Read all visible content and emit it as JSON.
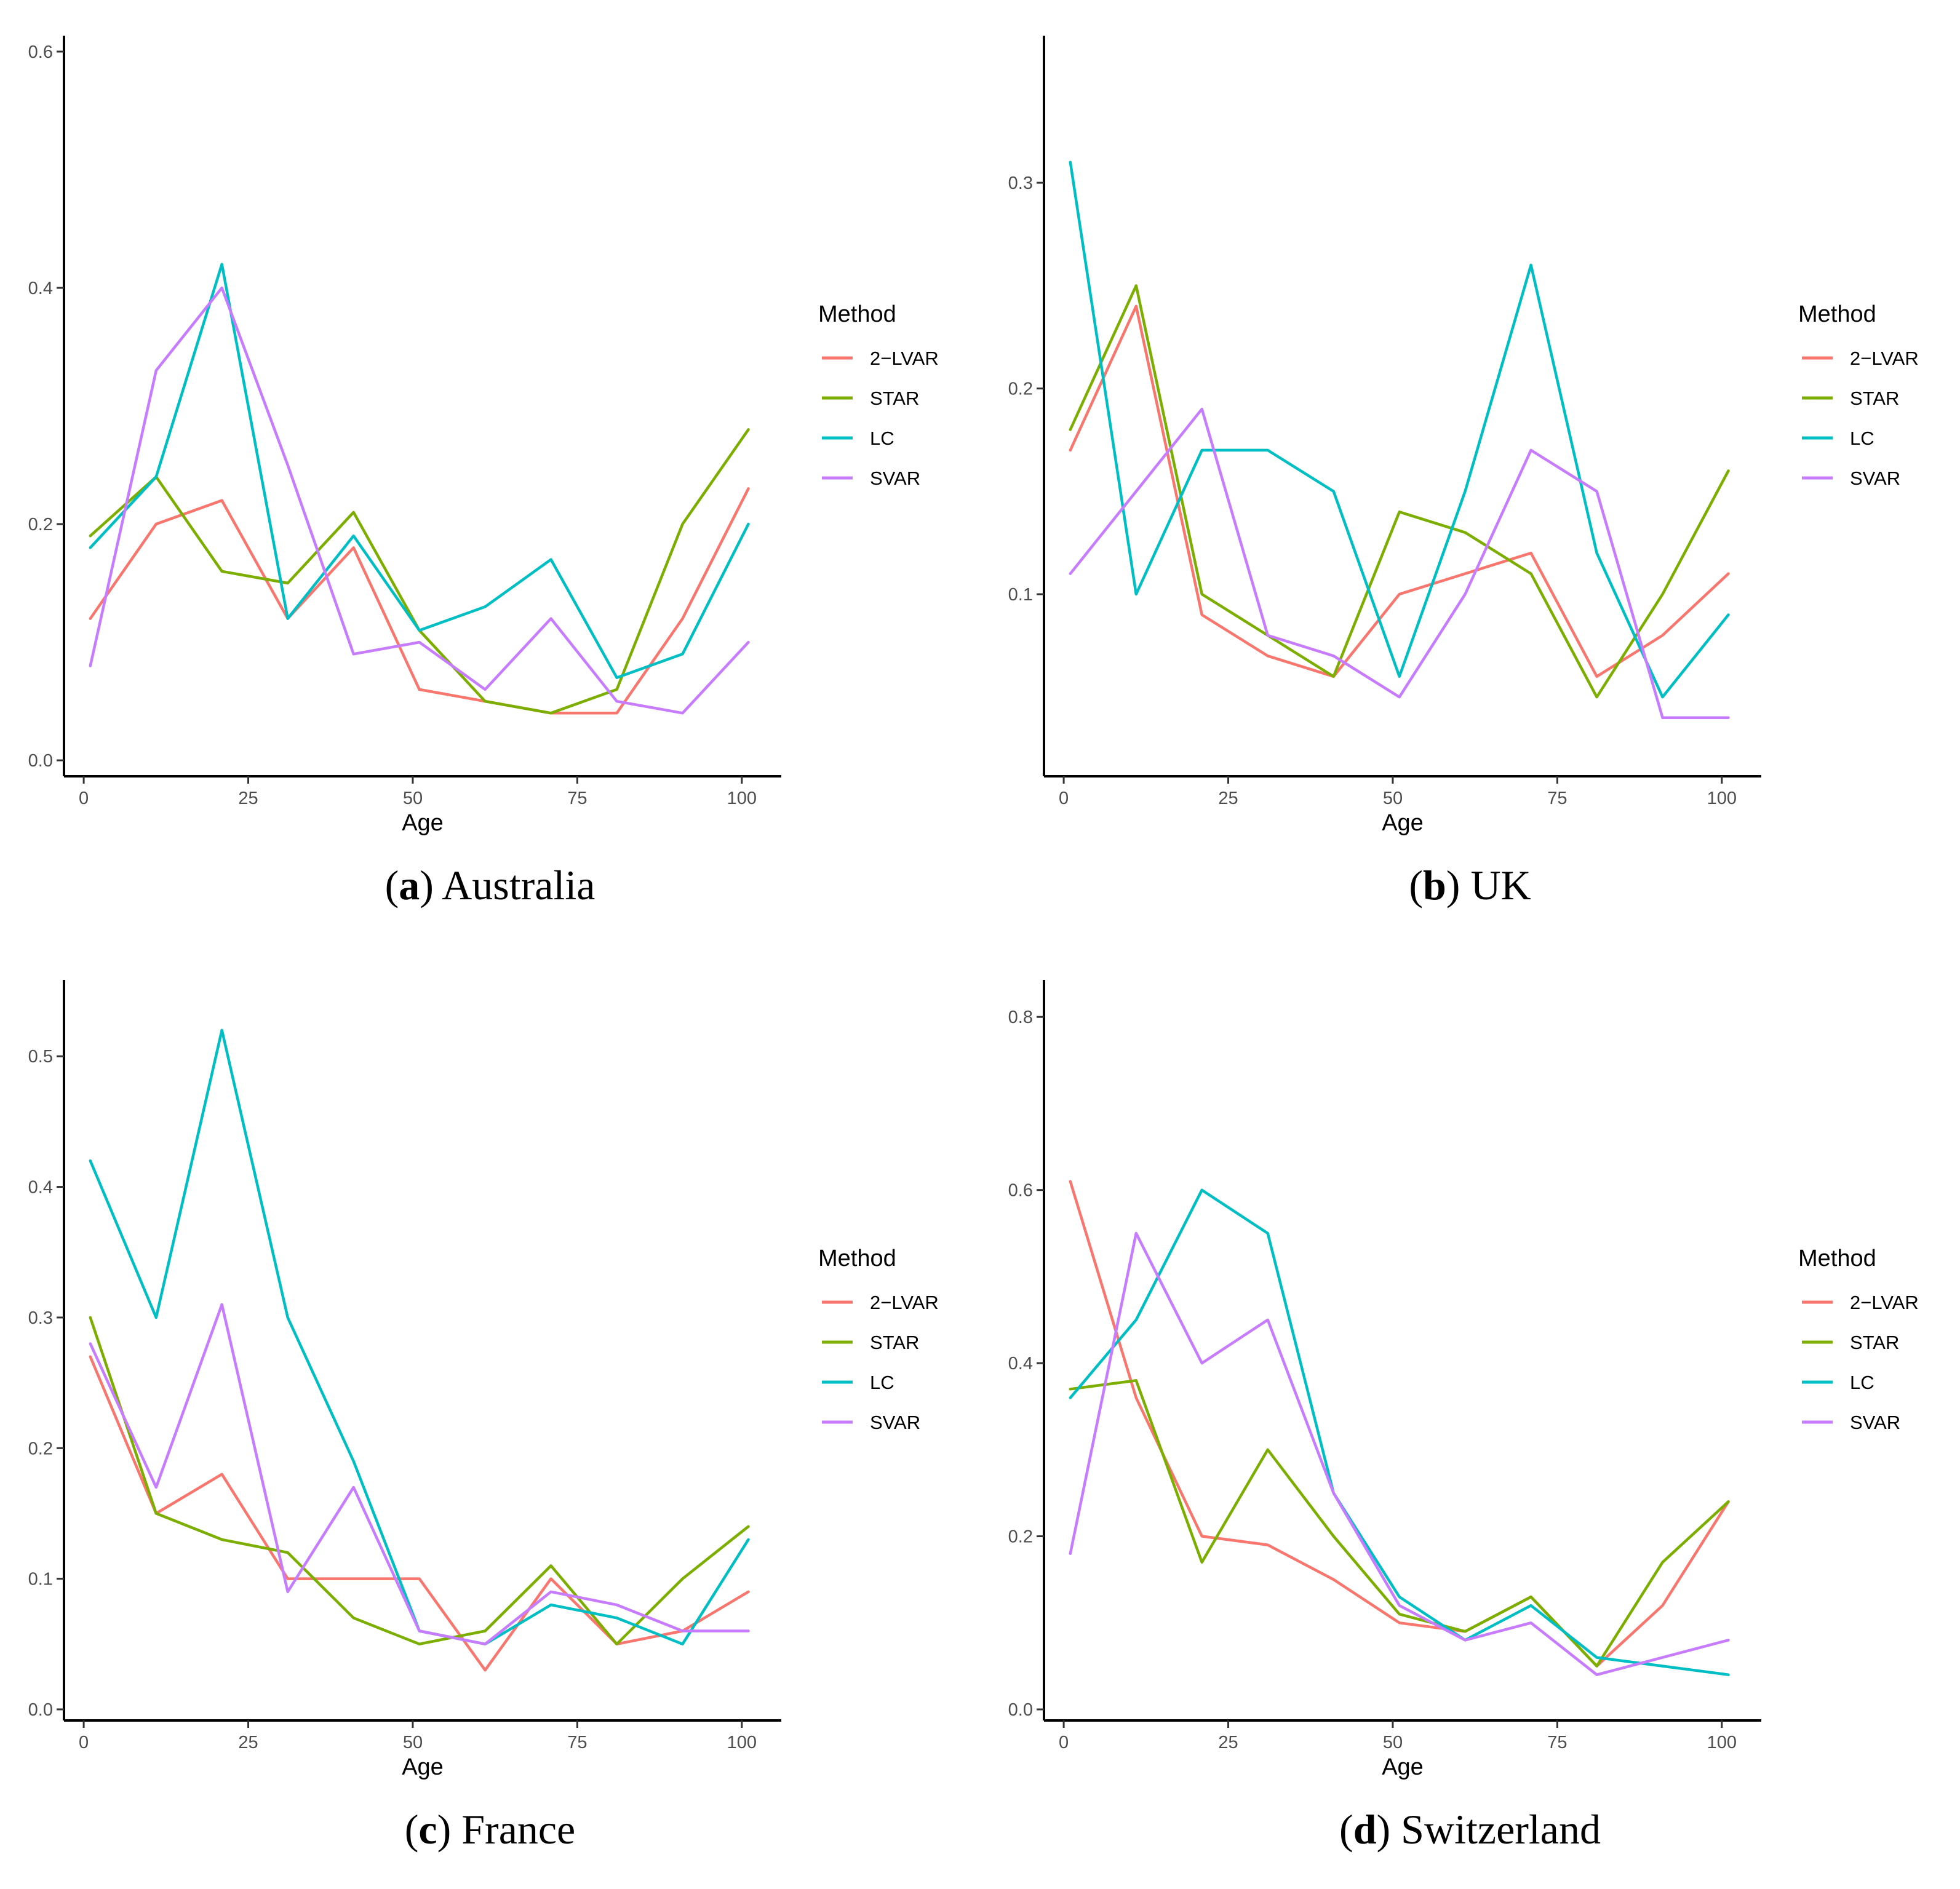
{
  "legend": {
    "title": "Method",
    "entries": [
      "2−LVAR",
      "STAR",
      "LC",
      "SVAR"
    ],
    "colors": [
      "#F8766D",
      "#7CAE00",
      "#00BFC4",
      "#C77CFF"
    ]
  },
  "chart_data": [
    {
      "type": "line",
      "caption_letter": "a",
      "caption_name": "Australia",
      "xlabel": "Age",
      "ylabel": "",
      "xlim": [
        -3,
        106
      ],
      "ylim": [
        -0.0135,
        0.6135
      ],
      "xticks": [
        "0",
        "25",
        "50",
        "75",
        "100"
      ],
      "yticks": [
        "0.0",
        "0.2",
        "0.4",
        "0.6"
      ],
      "x": [
        1,
        11,
        21,
        31,
        41,
        51,
        61,
        71,
        81,
        91,
        101
      ],
      "series": [
        {
          "name": "2−LVAR",
          "values": [
            0.12,
            0.2,
            0.22,
            0.12,
            0.18,
            0.06,
            0.05,
            0.04,
            0.04,
            0.12,
            0.23
          ]
        },
        {
          "name": "STAR",
          "values": [
            0.19,
            0.24,
            0.16,
            0.15,
            0.21,
            0.11,
            0.05,
            0.04,
            0.06,
            0.2,
            0.28
          ]
        },
        {
          "name": "LC",
          "values": [
            0.18,
            0.24,
            0.42,
            0.12,
            0.19,
            0.11,
            0.13,
            0.17,
            0.07,
            0.09,
            0.2
          ]
        },
        {
          "name": "SVAR",
          "values": [
            0.08,
            0.33,
            0.4,
            0.25,
            0.09,
            0.1,
            0.06,
            0.12,
            0.05,
            0.04,
            0.1
          ]
        }
      ]
    },
    {
      "type": "line",
      "caption_letter": "b",
      "caption_name": "UK",
      "xlabel": "Age",
      "ylabel": "",
      "xlim": [
        -3,
        106
      ],
      "ylim": [
        0.0115,
        0.3715
      ],
      "xticks": [
        "0",
        "25",
        "50",
        "75",
        "100"
      ],
      "yticks": [
        "0.1",
        "0.2",
        "0.3"
      ],
      "x": [
        1,
        11,
        21,
        31,
        41,
        51,
        61,
        71,
        81,
        91,
        101
      ],
      "series": [
        {
          "name": "2−LVAR",
          "values": [
            0.17,
            0.24,
            0.09,
            0.07,
            0.06,
            0.1,
            0.11,
            0.12,
            0.06,
            0.08,
            0.11
          ]
        },
        {
          "name": "STAR",
          "values": [
            0.18,
            0.25,
            0.1,
            0.08,
            0.06,
            0.14,
            0.13,
            0.11,
            0.05,
            0.1,
            0.16
          ]
        },
        {
          "name": "LC",
          "values": [
            0.31,
            0.1,
            0.17,
            0.17,
            0.15,
            0.06,
            0.15,
            0.26,
            0.12,
            0.05,
            0.09
          ]
        },
        {
          "name": "SVAR",
          "values": [
            0.11,
            0.15,
            0.19,
            0.08,
            0.07,
            0.05,
            0.1,
            0.17,
            0.15,
            0.04,
            0.04
          ]
        }
      ]
    },
    {
      "type": "line",
      "caption_letter": "c",
      "caption_name": "France",
      "xlabel": "Age",
      "ylabel": "",
      "xlim": [
        -3,
        106
      ],
      "ylim": [
        -0.0085,
        0.5585
      ],
      "xticks": [
        "0",
        "25",
        "50",
        "75",
        "100"
      ],
      "yticks": [
        "0.0",
        "0.1",
        "0.2",
        "0.3",
        "0.4",
        "0.5"
      ],
      "x": [
        1,
        11,
        21,
        31,
        41,
        51,
        61,
        71,
        81,
        91,
        101
      ],
      "series": [
        {
          "name": "2−LVAR",
          "values": [
            0.27,
            0.15,
            0.18,
            0.1,
            0.1,
            0.1,
            0.03,
            0.1,
            0.05,
            0.06,
            0.09
          ]
        },
        {
          "name": "STAR",
          "values": [
            0.3,
            0.15,
            0.13,
            0.12,
            0.07,
            0.05,
            0.06,
            0.11,
            0.05,
            0.1,
            0.14
          ]
        },
        {
          "name": "LC",
          "values": [
            0.42,
            0.3,
            0.52,
            0.3,
            0.19,
            0.06,
            0.05,
            0.08,
            0.07,
            0.05,
            0.13
          ]
        },
        {
          "name": "SVAR",
          "values": [
            0.28,
            0.17,
            0.31,
            0.09,
            0.17,
            0.06,
            0.05,
            0.09,
            0.08,
            0.06,
            0.06
          ]
        }
      ]
    },
    {
      "type": "line",
      "caption_letter": "d",
      "caption_name": "Switzerland",
      "xlabel": "Age",
      "ylabel": "",
      "xlim": [
        -3,
        106
      ],
      "ylim": [
        -0.0128,
        0.8428
      ],
      "xticks": [
        "0",
        "25",
        "50",
        "75",
        "100"
      ],
      "yticks": [
        "0.0",
        "0.2",
        "0.4",
        "0.6",
        "0.8"
      ],
      "x": [
        1,
        11,
        21,
        31,
        41,
        51,
        61,
        71,
        81,
        91,
        101
      ],
      "series": [
        {
          "name": "2−LVAR",
          "values": [
            0.61,
            0.36,
            0.2,
            0.19,
            0.15,
            0.1,
            0.09,
            0.13,
            0.05,
            0.12,
            0.24
          ]
        },
        {
          "name": "STAR",
          "values": [
            0.37,
            0.38,
            0.17,
            0.3,
            0.2,
            0.11,
            0.09,
            0.13,
            0.05,
            0.17,
            0.24
          ]
        },
        {
          "name": "LC",
          "values": [
            0.36,
            0.45,
            0.6,
            0.55,
            0.25,
            0.13,
            0.08,
            0.12,
            0.06,
            0.05,
            0.04
          ]
        },
        {
          "name": "SVAR",
          "values": [
            0.18,
            0.55,
            0.4,
            0.45,
            0.25,
            0.12,
            0.08,
            0.1,
            0.04,
            0.06,
            0.08
          ]
        }
      ]
    }
  ]
}
